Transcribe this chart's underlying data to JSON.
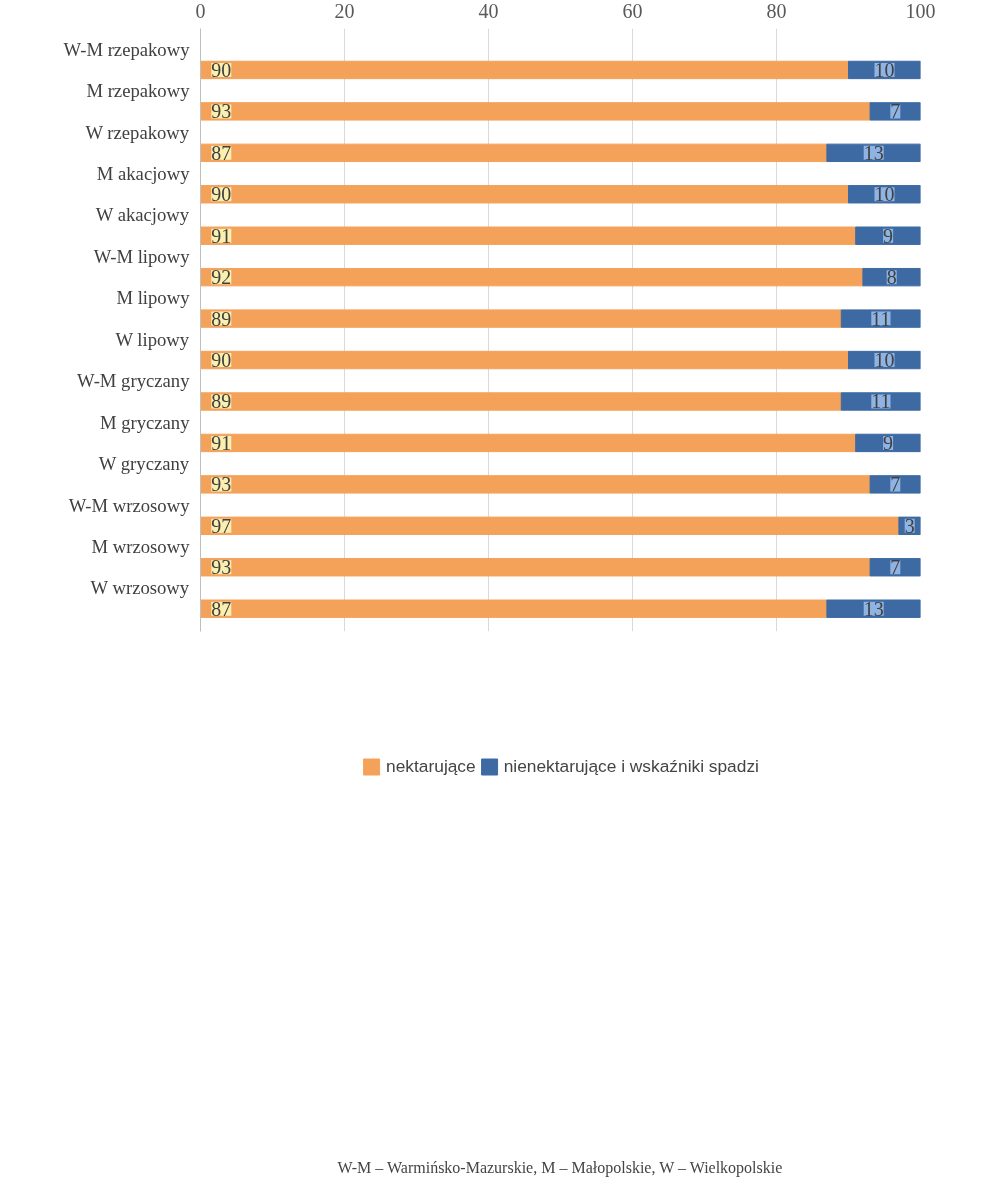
{
  "chart_data": {
    "type": "bar",
    "orientation": "horizontal",
    "stacked": true,
    "categories": [
      "W-M rzepakowy",
      "M rzepakowy",
      "W rzepakowy",
      "M akacjowy",
      "W akacjowy",
      "W-M lipowy",
      "M lipowy",
      "W lipowy",
      "W-M gryczany",
      "M gryczany",
      "W gryczany",
      "W-M wrzosowy",
      "M wrzosowy",
      "W wrzosowy"
    ],
    "series": [
      {
        "name": "nektarujące",
        "color": "#f4a25a",
        "values": [
          90,
          93,
          87,
          90,
          91,
          92,
          89,
          90,
          89,
          91,
          93,
          97,
          93,
          87
        ]
      },
      {
        "name": "nienektarujące i wskaźniki spadzi",
        "color": "#3d6aa3",
        "values": [
          10,
          7,
          13,
          10,
          9,
          8,
          11,
          10,
          11,
          9,
          7,
          3,
          7,
          13
        ]
      }
    ],
    "xlim": [
      0,
      100
    ],
    "xticks": [
      0,
      20,
      40,
      60,
      80,
      100
    ],
    "grid": "x",
    "legend": "bottom",
    "data_labels": true,
    "annotations": [
      "W-M – Warmińsko-Mazurskie, M – Małopolskie, W – Wielkopolskie"
    ]
  }
}
